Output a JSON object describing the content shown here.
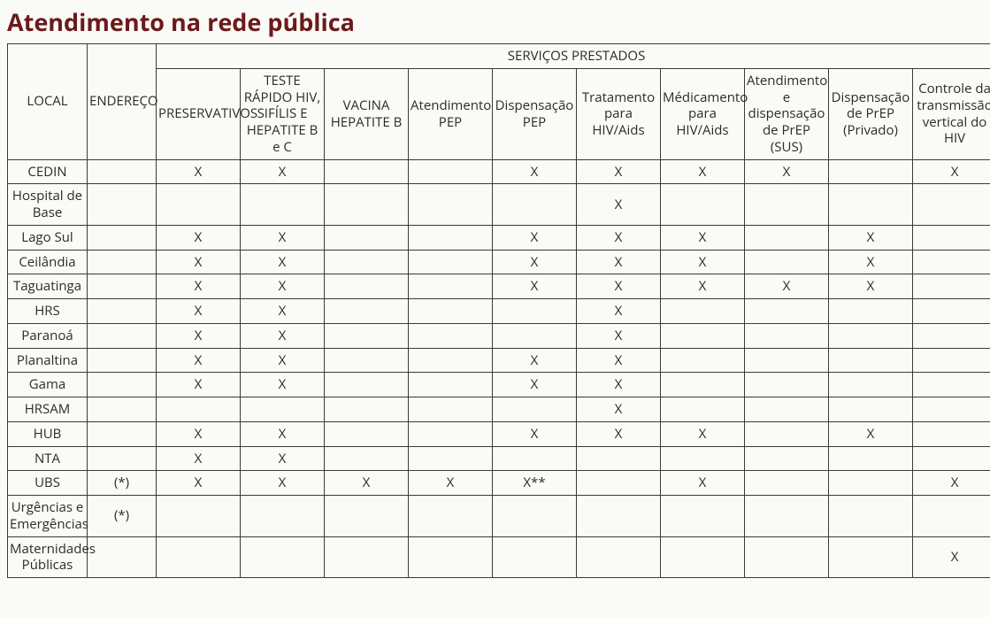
{
  "title": "Atendimento na rede pública",
  "table": {
    "header_group": "SERVIÇOS PRESTADOS",
    "col_local": "LOCAL",
    "col_endereco": "ENDEREÇO",
    "service_columns": [
      "PRESERVATIVOS",
      "TESTE RÁPIDO HIV, SIFÍLIS E HEPATITE B e C",
      "VACINA HEPATITE B",
      "Atendimento PEP",
      "Dispensação PEP",
      "Tratamento para HIV/Aids",
      "Médicamento para HIV/Aids",
      "Atendimento e dispensação de PrEP (SUS)",
      "Dispensação de PrEP (Privado)",
      "Controle da transmissão vertical do HIV"
    ],
    "mark": "X",
    "mark_alt": "X**",
    "endereco_note": "(*)",
    "rows": [
      {
        "local": "CEDIN",
        "endereco": "",
        "cells": [
          "X",
          "X",
          "",
          "",
          "X",
          "X",
          "X",
          "X",
          "",
          "X"
        ]
      },
      {
        "local": "Hospital de Base",
        "endereco": "",
        "cells": [
          "",
          "",
          "",
          "",
          "",
          "X",
          "",
          "",
          "",
          ""
        ]
      },
      {
        "local": "Lago Sul",
        "endereco": "",
        "cells": [
          "X",
          "X",
          "",
          "",
          "X",
          "X",
          "X",
          "",
          "X",
          ""
        ]
      },
      {
        "local": "Ceilândia",
        "endereco": "",
        "cells": [
          "X",
          "X",
          "",
          "",
          "X",
          "X",
          "X",
          "",
          "X",
          ""
        ]
      },
      {
        "local": "Taguatinga",
        "endereco": "",
        "cells": [
          "X",
          "X",
          "",
          "",
          "X",
          "X",
          "X",
          "X",
          "X",
          ""
        ]
      },
      {
        "local": "HRS",
        "endereco": "",
        "cells": [
          "X",
          "X",
          "",
          "",
          "",
          "X",
          "",
          "",
          "",
          ""
        ]
      },
      {
        "local": "Paranoá",
        "endereco": "",
        "cells": [
          "X",
          "X",
          "",
          "",
          "",
          "X",
          "",
          "",
          "",
          ""
        ]
      },
      {
        "local": "Planaltina",
        "endereco": "",
        "cells": [
          "X",
          "X",
          "",
          "",
          "X",
          "X",
          "",
          "",
          "",
          ""
        ]
      },
      {
        "local": "Gama",
        "endereco": "",
        "cells": [
          "X",
          "X",
          "",
          "",
          "X",
          "X",
          "",
          "",
          "",
          ""
        ]
      },
      {
        "local": "HRSAM",
        "endereco": "",
        "cells": [
          "",
          "",
          "",
          "",
          "",
          "X",
          "",
          "",
          "",
          ""
        ]
      },
      {
        "local": "HUB",
        "endereco": "",
        "cells": [
          "X",
          "X",
          "",
          "",
          "X",
          "X",
          "X",
          "",
          "X",
          ""
        ]
      },
      {
        "local": "NTA",
        "endereco": "",
        "cells": [
          "X",
          "X",
          "",
          "",
          "",
          "",
          "",
          "",
          "",
          ""
        ]
      },
      {
        "local": "UBS",
        "endereco": "(*)",
        "cells": [
          "X",
          "X",
          "X",
          "X",
          "X**",
          "",
          "X",
          "",
          "",
          "X"
        ]
      },
      {
        "local": "Urgências e Emergências",
        "endereco": "(*)",
        "cells": [
          "",
          "",
          "",
          "",
          "",
          "",
          "",
          "",
          "",
          ""
        ]
      },
      {
        "local": "Maternidades Públicas",
        "endereco": "",
        "cells": [
          "",
          "",
          "",
          "",
          "",
          "",
          "",
          "",
          "",
          "X"
        ]
      }
    ]
  }
}
